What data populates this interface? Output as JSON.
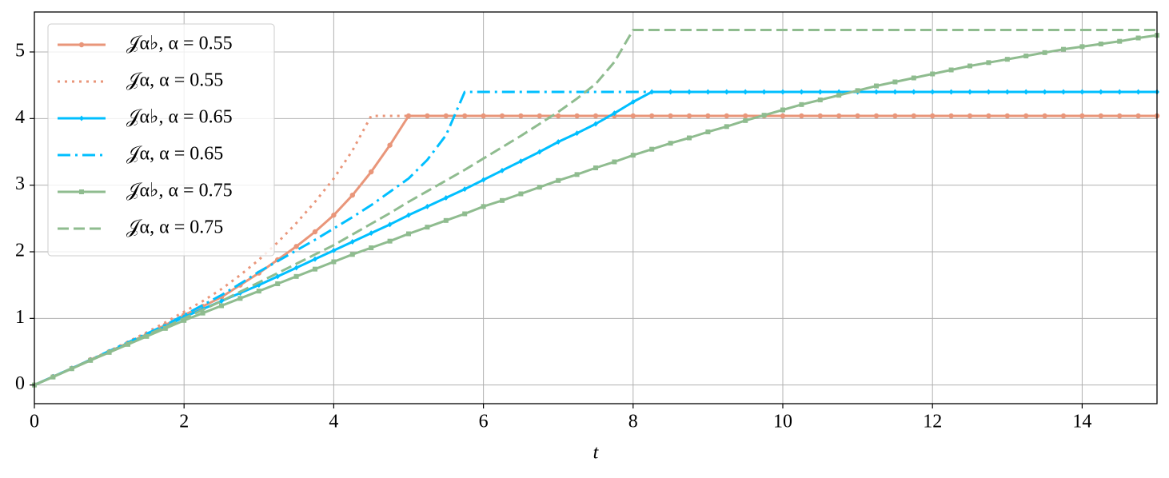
{
  "chart_data": {
    "type": "line",
    "xlabel": "t",
    "x": [
      0,
      0.25,
      0.5,
      0.75,
      1,
      1.25,
      1.5,
      1.75,
      2,
      2.25,
      2.5,
      2.75,
      3,
      3.25,
      3.5,
      3.75,
      4,
      4.25,
      4.5,
      4.75,
      5,
      5.25,
      5.5,
      5.75,
      6,
      6.25,
      6.5,
      6.75,
      7,
      7.25,
      7.5,
      7.75,
      8,
      8.25,
      8.5,
      8.75,
      9,
      9.25,
      9.5,
      9.75,
      10,
      10.25,
      10.5,
      10.75,
      11,
      11.25,
      11.5,
      11.75,
      12,
      12.25,
      12.5,
      12.75,
      13,
      13.25,
      13.5,
      13.75,
      14,
      14.25,
      14.5,
      14.75,
      15
    ],
    "series": [
      {
        "name": "𝒥α♭, α = 0.55",
        "color": "#e9967a",
        "linestyle": "solid",
        "marker": "circle",
        "values": [
          0,
          0.125,
          0.25,
          0.38,
          0.5,
          0.63,
          0.76,
          0.9,
          1.05,
          1.18,
          1.32,
          1.5,
          1.68,
          1.88,
          2.08,
          2.3,
          2.55,
          2.85,
          3.2,
          3.6,
          4.04,
          4.04,
          4.04,
          4.04,
          4.04,
          4.04,
          4.04,
          4.04,
          4.04,
          4.04,
          4.04,
          4.04,
          4.04,
          4.04,
          4.04,
          4.04,
          4.04,
          4.04,
          4.04,
          4.04,
          4.04,
          4.04,
          4.04,
          4.04,
          4.04,
          4.04,
          4.04,
          4.04,
          4.04,
          4.04,
          4.04,
          4.04,
          4.04,
          4.04,
          4.04,
          4.04,
          4.04,
          4.04,
          4.04,
          4.04,
          4.04
        ]
      },
      {
        "name": "𝒥α, α = 0.55",
        "color": "#e9967a",
        "linestyle": "dotted",
        "values": [
          0,
          0.125,
          0.25,
          0.38,
          0.51,
          0.65,
          0.79,
          0.94,
          1.1,
          1.26,
          1.44,
          1.65,
          1.88,
          2.14,
          2.43,
          2.75,
          3.1,
          3.52,
          4.04,
          4.04,
          4.04,
          4.04,
          4.04,
          4.04,
          4.04,
          4.04,
          4.04,
          4.04,
          4.04,
          4.04,
          4.04,
          4.04,
          4.04,
          4.04,
          4.04,
          4.04,
          4.04,
          4.04,
          4.04,
          4.04,
          4.04,
          4.04,
          4.04,
          4.04,
          4.04,
          4.04,
          4.04,
          4.04,
          4.04,
          4.04,
          4.04,
          4.04,
          4.04,
          4.04,
          4.04,
          4.04,
          4.04,
          4.04,
          4.04,
          4.04,
          4.04
        ]
      },
      {
        "name": "𝒥α♭, α = 0.65",
        "color": "#00bfff",
        "linestyle": "solid",
        "marker": "diamond",
        "values": [
          0,
          0.125,
          0.25,
          0.375,
          0.5,
          0.625,
          0.75,
          0.88,
          1.02,
          1.14,
          1.26,
          1.38,
          1.5,
          1.63,
          1.76,
          1.89,
          2.02,
          2.15,
          2.28,
          2.41,
          2.55,
          2.68,
          2.81,
          2.94,
          3.08,
          3.22,
          3.36,
          3.5,
          3.65,
          3.78,
          3.92,
          4.08,
          4.25,
          4.4,
          4.4,
          4.4,
          4.4,
          4.4,
          4.4,
          4.4,
          4.4,
          4.4,
          4.4,
          4.4,
          4.4,
          4.4,
          4.4,
          4.4,
          4.4,
          4.4,
          4.4,
          4.4,
          4.4,
          4.4,
          4.4,
          4.4,
          4.4,
          4.4,
          4.4,
          4.4,
          4.4
        ]
      },
      {
        "name": "𝒥α, α = 0.65",
        "color": "#00bfff",
        "linestyle": "dashdot",
        "values": [
          0,
          0.125,
          0.25,
          0.38,
          0.51,
          0.64,
          0.77,
          0.9,
          1.05,
          1.2,
          1.35,
          1.52,
          1.7,
          1.86,
          2.02,
          2.18,
          2.35,
          2.52,
          2.7,
          2.9,
          3.1,
          3.38,
          3.75,
          4.4,
          4.4,
          4.4,
          4.4,
          4.4,
          4.4,
          4.4,
          4.4,
          4.4,
          4.4,
          4.4,
          4.4,
          4.4,
          4.4,
          4.4,
          4.4,
          4.4,
          4.4,
          4.4,
          4.4,
          4.4,
          4.4,
          4.4,
          4.4,
          4.4,
          4.4,
          4.4,
          4.4,
          4.4,
          4.4,
          4.4,
          4.4,
          4.4,
          4.4,
          4.4,
          4.4,
          4.4,
          4.4
        ]
      },
      {
        "name": "𝒥α♭, α = 0.75",
        "color": "#8fbc8f",
        "linestyle": "solid",
        "marker": "square",
        "values": [
          0,
          0.12,
          0.245,
          0.37,
          0.49,
          0.61,
          0.73,
          0.85,
          0.97,
          1.08,
          1.19,
          1.3,
          1.41,
          1.52,
          1.63,
          1.74,
          1.85,
          1.96,
          2.06,
          2.16,
          2.27,
          2.37,
          2.47,
          2.57,
          2.68,
          2.77,
          2.87,
          2.97,
          3.07,
          3.16,
          3.26,
          3.35,
          3.45,
          3.54,
          3.63,
          3.71,
          3.8,
          3.88,
          3.97,
          4.05,
          4.13,
          4.21,
          4.28,
          4.35,
          4.42,
          4.49,
          4.55,
          4.61,
          4.67,
          4.73,
          4.79,
          4.84,
          4.89,
          4.94,
          4.99,
          5.04,
          5.08,
          5.12,
          5.16,
          5.21,
          5.25
        ]
      },
      {
        "name": "𝒥α, α = 0.75",
        "color": "#8fbc8f",
        "linestyle": "dashed",
        "values": [
          0,
          0.125,
          0.25,
          0.375,
          0.5,
          0.625,
          0.75,
          0.87,
          1.0,
          1.13,
          1.26,
          1.4,
          1.54,
          1.68,
          1.82,
          1.96,
          2.1,
          2.26,
          2.42,
          2.58,
          2.75,
          2.91,
          3.07,
          3.23,
          3.4,
          3.57,
          3.74,
          3.92,
          4.1,
          4.3,
          4.52,
          4.85,
          5.33,
          5.33,
          5.33,
          5.33,
          5.33,
          5.33,
          5.33,
          5.33,
          5.33,
          5.33,
          5.33,
          5.33,
          5.33,
          5.33,
          5.33,
          5.33,
          5.33,
          5.33,
          5.33,
          5.33,
          5.33,
          5.33,
          5.33,
          5.33,
          5.33,
          5.33,
          5.33,
          5.33,
          5.33
        ]
      }
    ],
    "xlim": [
      0,
      15
    ],
    "ylim": [
      -0.28,
      5.6
    ],
    "xticks": [
      0,
      2,
      4,
      6,
      8,
      10,
      12,
      14
    ],
    "yticks": [
      0,
      1,
      2,
      3,
      4,
      5
    ],
    "grid": true,
    "legend": "upper left"
  }
}
